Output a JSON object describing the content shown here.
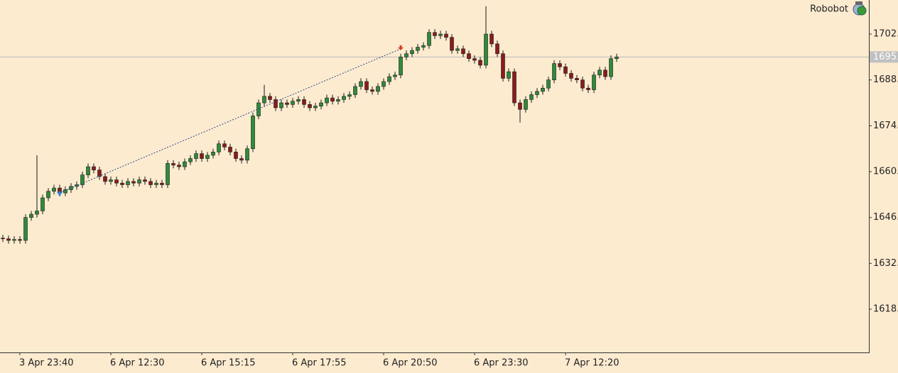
{
  "chart_data": {
    "type": "candlestick",
    "label": "Robobot",
    "bull_color": "#2f8a3a",
    "bear_color": "#8b1c1c",
    "wick_color": "#1a1a1a",
    "ylim": [
      1604.8,
      1712.4
    ],
    "yticks": [
      {
        "value": 1618,
        "label": "1618."
      },
      {
        "value": 1632,
        "label": "1632."
      },
      {
        "value": 1646,
        "label": "1646."
      },
      {
        "value": 1660,
        "label": "1660."
      },
      {
        "value": 1674,
        "label": "1674."
      },
      {
        "value": 1688,
        "label": "1688."
      },
      {
        "value": 1702,
        "label": "1702."
      }
    ],
    "last": {
      "value": 1695,
      "label": "1695."
    },
    "trade": {
      "entry": {
        "index": 10,
        "price": 1653.5
      },
      "exit": {
        "index": 70,
        "price": 1697.5
      }
    },
    "categories": [
      null,
      null,
      null,
      "3 Apr 23:40",
      null,
      null,
      null,
      null,
      null,
      null,
      null,
      null,
      null,
      null,
      null,
      null,
      null,
      null,
      null,
      "6 Apr 12:30",
      null,
      null,
      null,
      null,
      null,
      null,
      null,
      null,
      null,
      null,
      null,
      null,
      null,
      null,
      null,
      "6 Apr 15:15",
      null,
      null,
      null,
      null,
      null,
      null,
      null,
      null,
      null,
      null,
      null,
      null,
      null,
      null,
      null,
      "6 Apr 17:55",
      null,
      null,
      null,
      null,
      null,
      null,
      null,
      null,
      null,
      null,
      null,
      null,
      null,
      null,
      null,
      "6 Apr 20:50",
      null,
      null,
      null,
      null,
      null,
      null,
      null,
      null,
      null,
      null,
      null,
      null,
      null,
      null,
      null,
      "6 Apr 23:30",
      null,
      null,
      null,
      null,
      null,
      null,
      null,
      null,
      null,
      null,
      null,
      null,
      null,
      null,
      null,
      "7 Apr 12:20",
      null,
      null,
      null,
      null,
      null,
      null,
      null,
      null,
      null
    ],
    "open": [
      1639.7,
      1639.5,
      1639,
      1639.3,
      1639,
      1646,
      1647,
      1648,
      1652,
      1654,
      1655,
      1653.5,
      1654.5,
      1655.5,
      1656,
      1659,
      1661.5,
      1660.5,
      1658.5,
      1657,
      1657.5,
      1656.5,
      1656,
      1657,
      1656.5,
      1657.5,
      1657,
      1656,
      1656.5,
      1656,
      1662.5,
      1662,
      1661.5,
      1663,
      1664,
      1665.5,
      1664,
      1665,
      1666,
      1668.5,
      1667.5,
      1666,
      1664,
      1663.5,
      1667,
      1677,
      1681,
      1683,
      1682,
      1679.5,
      1681,
      1680.5,
      1681.5,
      1682,
      1680.5,
      1679.5,
      1680,
      1681,
      1682.5,
      1681.5,
      1682,
      1683,
      1683.5,
      1686,
      1687.5,
      1685,
      1684.5,
      1686,
      1687.5,
      1689,
      1689.5,
      1695,
      1696,
      1697,
      1698,
      1698.5,
      1702.5,
      1701.5,
      1702,
      1701,
      1697,
      1697.5,
      1696,
      1694.5,
      1694,
      1692.5,
      1702,
      1699,
      1696,
      1688.5,
      1690.5,
      1681,
      1679,
      1682,
      1683.5,
      1684.5,
      1685.5,
      1688,
      1693,
      1692,
      1690,
      1688.5,
      1688,
      1685.5,
      1685,
      1689.5,
      1691,
      1689,
      1694.5
    ],
    "high": [
      1640.7,
      1640.5,
      1640.3,
      1640.3,
      1647,
      1648,
      1665,
      1653,
      1655,
      1656,
      1656,
      1655.5,
      1656.5,
      1657,
      1660,
      1662.5,
      1662.5,
      1661.5,
      1659.5,
      1658.5,
      1658.5,
      1657.5,
      1658,
      1658,
      1658.5,
      1658.5,
      1658,
      1657.5,
      1657.5,
      1663.5,
      1663.5,
      1663,
      1664,
      1665,
      1666.5,
      1666.5,
      1666,
      1667,
      1669.5,
      1669.5,
      1668.5,
      1667,
      1665,
      1668,
      1678,
      1682,
      1686.5,
      1684,
      1683,
      1682,
      1682,
      1682.5,
      1683,
      1683,
      1681.5,
      1681,
      1682,
      1683.5,
      1683.5,
      1683,
      1684,
      1684.5,
      1687,
      1688.5,
      1688.5,
      1686,
      1687,
      1688.5,
      1690,
      1690.5,
      1696,
      1697,
      1698,
      1699,
      1699.5,
      1703.5,
      1703.5,
      1703,
      1703,
      1702,
      1698.5,
      1698.5,
      1697,
      1695.5,
      1695,
      1710.5,
      1703,
      1700,
      1697,
      1691.5,
      1691.5,
      1682,
      1683,
      1684.5,
      1685.5,
      1686.5,
      1689,
      1694,
      1694,
      1693,
      1691,
      1689.5,
      1689,
      1686.5,
      1690.5,
      1692,
      1692,
      1695.5,
      1696
    ],
    "low": [
      1638.5,
      1638,
      1638,
      1638,
      1638,
      1645,
      1646,
      1647,
      1651,
      1653,
      1652.5,
      1652.5,
      1653.5,
      1654.5,
      1655,
      1658,
      1659.5,
      1657.5,
      1656,
      1656,
      1655.5,
      1655,
      1655,
      1655.5,
      1655.5,
      1656,
      1655,
      1655,
      1655,
      1655,
      1661,
      1660.5,
      1660.5,
      1662,
      1663,
      1663,
      1663,
      1664,
      1665,
      1666.5,
      1665,
      1663,
      1662.5,
      1662.5,
      1666,
      1676,
      1680,
      1681,
      1678.5,
      1678.5,
      1679.5,
      1679.5,
      1680.5,
      1679.5,
      1678.5,
      1678.5,
      1679,
      1680,
      1680.5,
      1680.5,
      1681,
      1682,
      1682.5,
      1685,
      1684,
      1683.5,
      1683.5,
      1685,
      1686.5,
      1688,
      1688.5,
      1694,
      1695,
      1696,
      1697,
      1697.5,
      1700.5,
      1700.5,
      1700,
      1696,
      1696,
      1695,
      1693.5,
      1693,
      1691.5,
      1691.5,
      1698,
      1695,
      1687.5,
      1687.5,
      1680,
      1675,
      1678,
      1681,
      1682.5,
      1683.5,
      1684.5,
      1687,
      1691,
      1689,
      1687.5,
      1687,
      1684.5,
      1684,
      1684,
      1688.5,
      1688,
      1688,
      1693.5
    ],
    "close": [
      1639.5,
      1639,
      1639.3,
      1639,
      1646,
      1647,
      1648,
      1652,
      1654,
      1655,
      1653.5,
      1654.5,
      1655.5,
      1656,
      1659,
      1661.5,
      1660.5,
      1658.5,
      1657,
      1657.5,
      1656.5,
      1656,
      1657,
      1656.5,
      1657.5,
      1657,
      1656,
      1656.5,
      1656,
      1662.5,
      1662,
      1661.5,
      1663,
      1664,
      1665.5,
      1664,
      1665,
      1666,
      1668.5,
      1667.5,
      1666,
      1664,
      1663.5,
      1667,
      1677,
      1681,
      1683,
      1682,
      1679.5,
      1681,
      1680.5,
      1681.5,
      1682,
      1680.5,
      1679.5,
      1680,
      1681,
      1682.5,
      1681.5,
      1682,
      1683,
      1683.5,
      1686,
      1687.5,
      1685,
      1684.5,
      1686,
      1687.5,
      1689,
      1689.5,
      1695,
      1696,
      1697,
      1698,
      1698.5,
      1702.5,
      1701.5,
      1702,
      1701,
      1697,
      1697.5,
      1696,
      1694.5,
      1694,
      1692.5,
      1702,
      1699,
      1696,
      1688.5,
      1690.5,
      1681,
      1679,
      1682,
      1683.5,
      1684.5,
      1685.5,
      1688,
      1693,
      1692,
      1690,
      1688.5,
      1688,
      1685.5,
      1685,
      1689.5,
      1691,
      1689,
      1694.5,
      1695
    ]
  }
}
